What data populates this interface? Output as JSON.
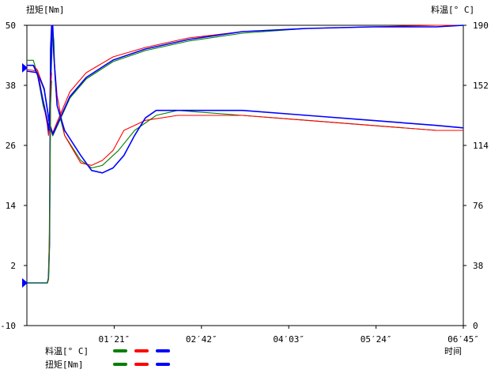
{
  "chart_data": {
    "type": "line",
    "left_axis": {
      "label": "扭矩[Nm]",
      "ticks": [
        "50",
        "38",
        "26",
        "14",
        "2",
        "-10"
      ],
      "range": [
        -10,
        50
      ]
    },
    "right_axis": {
      "label": "料温[° C]",
      "ticks": [
        "190",
        "152",
        "114",
        "76",
        "38",
        "0"
      ],
      "range": [
        0,
        190
      ]
    },
    "x_axis": {
      "label": "时间",
      "ticks": [
        "01′21″",
        "02′42″",
        "04′03″",
        "05′24″",
        "06′45″"
      ],
      "range_seconds": [
        0,
        405
      ]
    },
    "legend": {
      "rows": [
        "料温[° C]",
        "扭矩[Nm]"
      ],
      "colors": [
        "#008000",
        "#ff0000",
        "#0000ff"
      ]
    },
    "grid": false,
    "series": [
      {
        "kind": "temperature",
        "color": "#ff0000",
        "points": [
          [
            0,
            162
          ],
          [
            10,
            161
          ],
          [
            16,
            150
          ],
          [
            21,
            128
          ],
          [
            24,
            122
          ],
          [
            30,
            132
          ],
          [
            40,
            148
          ],
          [
            55,
            160
          ],
          [
            80,
            170
          ],
          [
            110,
            176
          ],
          [
            150,
            182
          ],
          [
            200,
            186
          ],
          [
            260,
            188
          ],
          [
            320,
            189
          ],
          [
            380,
            190
          ],
          [
            405,
            190
          ]
        ]
      },
      {
        "kind": "temperature",
        "color": "#008000",
        "points": [
          [
            0,
            161
          ],
          [
            10,
            160
          ],
          [
            16,
            149
          ],
          [
            21,
            127
          ],
          [
            24,
            120
          ],
          [
            30,
            129
          ],
          [
            40,
            144
          ],
          [
            55,
            156
          ],
          [
            80,
            167
          ],
          [
            110,
            174
          ],
          [
            150,
            180
          ],
          [
            200,
            185
          ],
          [
            260,
            188
          ],
          [
            320,
            189
          ],
          [
            380,
            189
          ],
          [
            405,
            190
          ]
        ]
      },
      {
        "kind": "temperature",
        "color": "#0000ff",
        "points": [
          [
            0,
            161
          ],
          [
            10,
            160
          ],
          [
            16,
            150
          ],
          [
            21,
            128
          ],
          [
            24,
            121
          ],
          [
            30,
            130
          ],
          [
            40,
            145
          ],
          [
            55,
            157
          ],
          [
            80,
            168
          ],
          [
            110,
            175
          ],
          [
            150,
            181
          ],
          [
            200,
            186
          ],
          [
            260,
            188
          ],
          [
            320,
            189
          ],
          [
            380,
            189
          ],
          [
            405,
            190
          ]
        ]
      },
      {
        "kind": "torque",
        "color": "#008000",
        "points": [
          [
            0,
            43
          ],
          [
            6,
            43
          ],
          [
            10,
            40
          ],
          [
            15,
            34
          ],
          [
            19,
            31
          ],
          [
            21,
            29
          ],
          [
            22,
            36
          ],
          [
            23,
            43
          ],
          [
            24,
            49
          ],
          [
            25,
            47
          ],
          [
            26,
            40
          ],
          [
            28,
            34
          ],
          [
            35,
            28
          ],
          [
            50,
            23
          ],
          [
            60,
            21.5
          ],
          [
            70,
            22
          ],
          [
            85,
            25
          ],
          [
            100,
            29
          ],
          [
            120,
            32
          ],
          [
            140,
            33
          ],
          [
            200,
            32
          ],
          [
            260,
            31
          ],
          [
            320,
            30
          ],
          [
            380,
            29
          ],
          [
            405,
            29
          ]
        ]
      },
      {
        "kind": "torque",
        "color": "#ff0000",
        "points": [
          [
            0,
            42
          ],
          [
            6,
            42
          ],
          [
            10,
            41
          ],
          [
            15,
            35
          ],
          [
            19,
            30
          ],
          [
            20,
            28
          ],
          [
            21,
            30
          ],
          [
            22,
            38
          ],
          [
            23,
            50
          ],
          [
            24,
            52
          ],
          [
            25,
            44
          ],
          [
            28,
            36
          ],
          [
            35,
            28
          ],
          [
            50,
            22.5
          ],
          [
            60,
            22
          ],
          [
            70,
            23
          ],
          [
            80,
            25
          ],
          [
            90,
            29
          ],
          [
            110,
            31
          ],
          [
            140,
            32
          ],
          [
            200,
            32
          ],
          [
            260,
            31
          ],
          [
            320,
            30
          ],
          [
            380,
            29
          ],
          [
            405,
            29
          ]
        ]
      },
      {
        "kind": "torque",
        "color": "#0000ff",
        "points": [
          [
            0,
            42
          ],
          [
            6,
            42
          ],
          [
            10,
            40
          ],
          [
            15,
            35
          ],
          [
            19,
            31
          ],
          [
            20,
            29
          ],
          [
            21,
            31
          ],
          [
            22,
            40
          ],
          [
            23,
            48
          ],
          [
            24,
            50
          ],
          [
            25,
            44
          ],
          [
            28,
            34
          ],
          [
            35,
            29
          ],
          [
            50,
            24
          ],
          [
            60,
            21
          ],
          [
            70,
            20.5
          ],
          [
            80,
            21.5
          ],
          [
            90,
            24
          ],
          [
            100,
            28
          ],
          [
            110,
            31.5
          ],
          [
            120,
            33
          ],
          [
            200,
            33
          ],
          [
            260,
            32
          ],
          [
            320,
            31
          ],
          [
            380,
            30
          ],
          [
            405,
            29.5
          ]
        ]
      },
      {
        "kind": "temperature-start",
        "color": "#0000ff",
        "points": [
          [
            0,
            27
          ],
          [
            19,
            27
          ],
          [
            20,
            30
          ],
          [
            21,
            52
          ],
          [
            22,
            175
          ],
          [
            23,
            190
          ]
        ]
      },
      {
        "kind": "temperature-start",
        "color": "#ff0000",
        "points": [
          [
            0,
            27
          ],
          [
            19,
            27
          ],
          [
            20,
            29
          ],
          [
            21,
            60
          ],
          [
            22,
            150
          ],
          [
            23,
            160
          ]
        ]
      },
      {
        "kind": "temperature-start",
        "color": "#008000",
        "points": [
          [
            0,
            27
          ],
          [
            19,
            27
          ],
          [
            20,
            30
          ],
          [
            21,
            50
          ],
          [
            22,
            140
          ],
          [
            23,
            155
          ]
        ]
      }
    ],
    "markers": [
      {
        "axis": "left",
        "value": 41.5,
        "color": "#0000ff"
      },
      {
        "axis": "right",
        "value": 27,
        "color": "#0000ff"
      }
    ]
  }
}
